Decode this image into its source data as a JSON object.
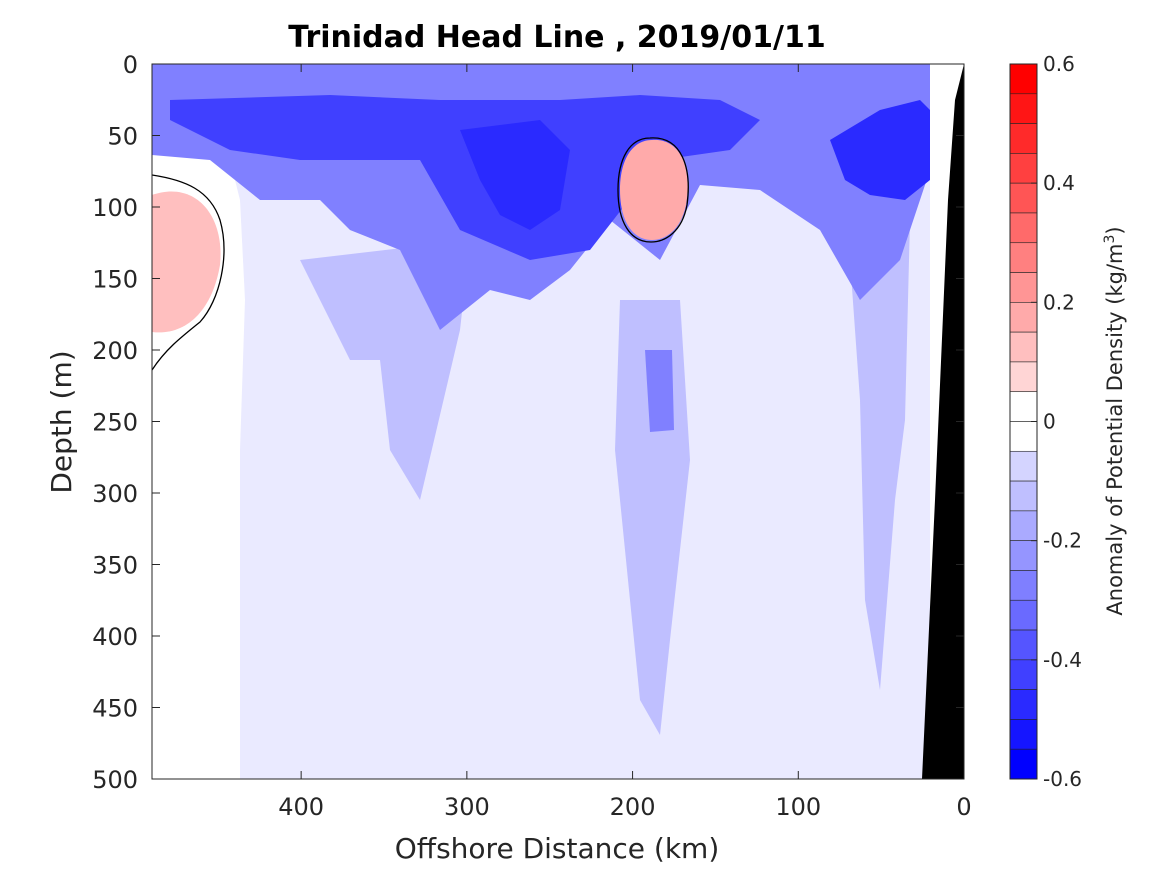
{
  "chart_data": {
    "type": "heatmap",
    "subtype": "filled-contour",
    "title": "Trinidad Head Line , 2019/01/11",
    "xlabel": "Offshore Distance (km)",
    "ylabel": "Depth (m)",
    "x_direction": "reversed",
    "y_direction": "reversed",
    "xlim": [
      0,
      490
    ],
    "ylim": [
      0,
      500
    ],
    "xticks": [
      400,
      300,
      200,
      100,
      0
    ],
    "xtick_labels": [
      "400",
      "300",
      "200",
      "100",
      "0"
    ],
    "yticks": [
      0,
      50,
      100,
      150,
      200,
      250,
      300,
      350,
      400,
      450,
      500
    ],
    "ytick_labels": [
      "0",
      "50",
      "100",
      "150",
      "200",
      "250",
      "300",
      "350",
      "400",
      "450",
      "500"
    ],
    "grid": false,
    "colorbar": {
      "label": "Anomaly of Potential Density (kg/m",
      "label_superscript": "3",
      "label_close": ")",
      "range": [
        -0.6,
        0.6
      ],
      "step": 0.05,
      "ticks": [
        0.6,
        0.4,
        0.2,
        0,
        -0.2,
        -0.4,
        -0.6
      ],
      "tick_labels": [
        "0.6",
        "0.4",
        "0.2",
        "0",
        "-0.2",
        "-0.4",
        "-0.6"
      ],
      "colormap": "blue-white-red",
      "colors": {
        "negative": "#0000ff",
        "zero": "#ffffff",
        "positive": "#ff0000"
      }
    },
    "fill_regions": [
      {
        "name": "surface-band",
        "level": -0.3
      },
      {
        "name": "deep-background",
        "level": -0.05
      },
      {
        "name": "mid-plume",
        "level": -0.15
      },
      {
        "name": "central-column",
        "level": -0.15
      },
      {
        "name": "central-core",
        "level": -0.3
      },
      {
        "name": "nearshore-column",
        "level": -0.15
      },
      {
        "name": "upper-core",
        "level": -0.45
      },
      {
        "name": "left-core",
        "level": -0.5
      },
      {
        "name": "nearshore-core",
        "level": -0.5
      },
      {
        "name": "west-eddy",
        "level": 0.15
      },
      {
        "name": "central-eddy",
        "level": 0.2
      }
    ],
    "zero_contour": true,
    "bathymetry_color": "#000000"
  }
}
